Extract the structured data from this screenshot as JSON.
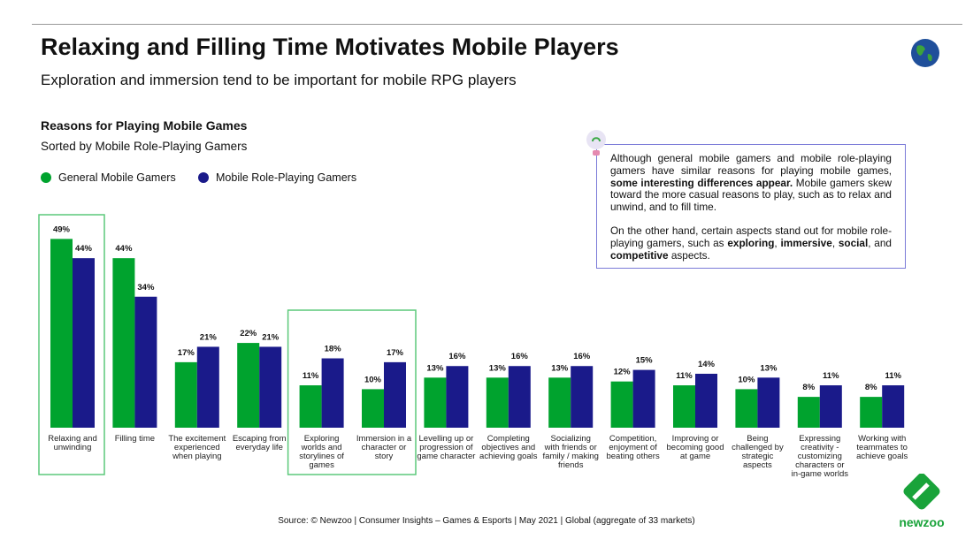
{
  "header": {
    "title": "Relaxing and Filling Time Motivates Mobile Players",
    "subtitle": "Exploration and immersion tend to be important for mobile RPG players"
  },
  "note": {
    "p1_a": "Although general mobile gamers and mobile role-playing gamers have similar reasons for playing mobile games, ",
    "p1_b": "some interesting differences appear.",
    "p1_c": " Mobile gamers skew toward the more casual reasons to play, such as to relax and unwind, and to fill time.",
    "p2_a": "On the other hand, certain aspects stand out for mobile role-playing gamers, such as ",
    "p2_b": "exploring",
    "p2_c": ", ",
    "p2_d": "immersive",
    "p2_e": ", ",
    "p2_f": "social",
    "p2_g": ", and ",
    "p2_h": "competitive",
    "p2_i": " aspects."
  },
  "source": "Source: © Newzoo | Consumer Insights – Games & Esports | May 2021 | Global (aggregate of 33 markets)",
  "logo_text": "newzoo",
  "colors": {
    "general": "#00a32e",
    "rpg": "#1a1a8a",
    "highlight": "#5cc97a"
  },
  "chart_data": {
    "type": "bar",
    "title": "Reasons for Playing Mobile Games",
    "subtitle": "Sorted by Mobile Role-Playing Gamers",
    "categories": [
      "Relaxing and unwinding",
      "Filling time",
      "The excitement experienced when playing",
      "Escaping from everyday life",
      "Exploring worlds and storylines of games",
      "Immersion in a character or story",
      "Levelling up or progression of game character",
      "Completing objectives and achieving goals",
      "Socializing with friends or family / making friends",
      "Competition, enjoyment of beating others",
      "Improving or becoming good at game",
      "Being challenged by strategic aspects",
      "Expressing creativity - customizing characters or in-game worlds",
      "Working with teammates to achieve goals"
    ],
    "series": [
      {
        "name": "General Mobile Gamers",
        "values": [
          49,
          44,
          17,
          22,
          11,
          10,
          13,
          13,
          13,
          12,
          11,
          10,
          8,
          8
        ]
      },
      {
        "name": "Mobile Role-Playing Gamers",
        "values": [
          44,
          34,
          21,
          21,
          18,
          17,
          16,
          16,
          16,
          15,
          14,
          13,
          11,
          11
        ]
      }
    ],
    "unit": "%",
    "ylim": [
      0,
      50
    ],
    "grid": false,
    "legend": "top-left",
    "highlighted_categories": [
      0,
      4,
      5
    ]
  }
}
